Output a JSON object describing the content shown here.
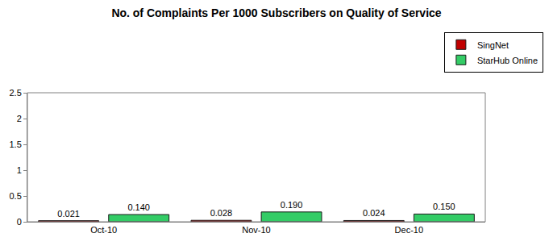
{
  "chart_data": {
    "type": "bar",
    "title": "No. of Complaints Per 1000 Subscribers on Quality of Service",
    "categories": [
      "Oct-10",
      "Nov-10",
      "Dec-10"
    ],
    "series": [
      {
        "name": "SingNet",
        "color": "#c00000",
        "values": [
          0.021,
          0.028,
          0.024
        ],
        "value_labels": [
          "0.021",
          "0.028",
          "0.024"
        ]
      },
      {
        "name": "StarHub Online",
        "color": "#33cc66",
        "values": [
          0.14,
          0.19,
          0.15
        ],
        "value_labels": [
          "0.140",
          "0.190",
          "0.150"
        ]
      }
    ],
    "ylim": [
      0,
      2.5
    ],
    "yticks": [
      0,
      0.5,
      1,
      1.5,
      2,
      2.5
    ],
    "grid": false,
    "legend": "top-right",
    "data_labels": true
  }
}
